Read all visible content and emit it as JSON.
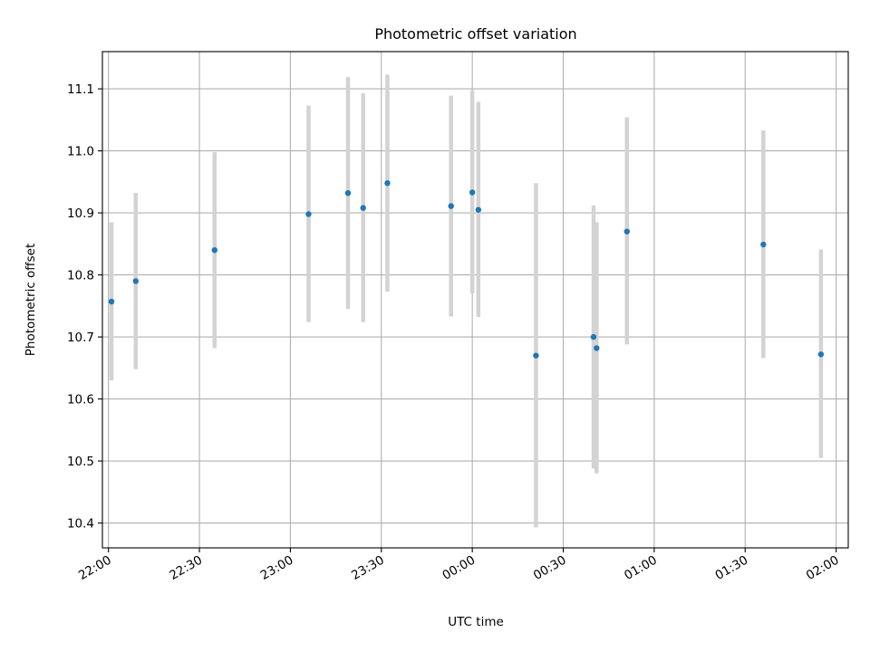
{
  "chart_data": {
    "type": "scatter",
    "title": "Photometric offset variation",
    "xlabel": "UTC time",
    "ylabel": "Photometric offset",
    "grid": true,
    "x_range": [
      "21:58",
      "02:04"
    ],
    "x_ticks": [
      "22:00",
      "22:30",
      "23:00",
      "23:30",
      "00:00",
      "00:30",
      "01:00",
      "01:30",
      "02:00"
    ],
    "ylim": [
      10.36,
      11.16
    ],
    "y_ticks": [
      "10.4",
      "10.5",
      "10.6",
      "10.7",
      "10.8",
      "10.9",
      "11.0",
      "11.1"
    ],
    "colors": {
      "point": "#1f77b4",
      "error_bar": "#d3d3d3",
      "grid": "#b0b0b0"
    },
    "points": [
      {
        "x": "22:01",
        "y": 10.757,
        "yerr_low": 10.63,
        "yerr_high": 10.885
      },
      {
        "x": "22:09",
        "y": 10.79,
        "yerr_low": 10.648,
        "yerr_high": 10.932
      },
      {
        "x": "22:35",
        "y": 10.84,
        "yerr_low": 10.682,
        "yerr_high": 10.998
      },
      {
        "x": "23:06",
        "y": 10.898,
        "yerr_low": 10.724,
        "yerr_high": 11.073
      },
      {
        "x": "23:19",
        "y": 10.932,
        "yerr_low": 10.745,
        "yerr_high": 11.119
      },
      {
        "x": "23:24",
        "y": 10.908,
        "yerr_low": 10.724,
        "yerr_high": 11.093
      },
      {
        "x": "23:32",
        "y": 10.948,
        "yerr_low": 10.773,
        "yerr_high": 11.123
      },
      {
        "x": "23:53",
        "y": 10.911,
        "yerr_low": 10.733,
        "yerr_high": 11.089
      },
      {
        "x": "00:00",
        "y": 10.933,
        "yerr_low": 10.77,
        "yerr_high": 11.097
      },
      {
        "x": "00:02",
        "y": 10.905,
        "yerr_low": 10.732,
        "yerr_high": 11.079
      },
      {
        "x": "00:21",
        "y": 10.67,
        "yerr_low": 10.393,
        "yerr_high": 10.948
      },
      {
        "x": "00:40",
        "y": 10.7,
        "yerr_low": 10.488,
        "yerr_high": 10.912
      },
      {
        "x": "00:41",
        "y": 10.682,
        "yerr_low": 10.48,
        "yerr_high": 10.885
      },
      {
        "x": "00:51",
        "y": 10.87,
        "yerr_low": 10.688,
        "yerr_high": 11.054
      },
      {
        "x": "01:36",
        "y": 10.849,
        "yerr_low": 10.666,
        "yerr_high": 11.033
      },
      {
        "x": "01:55",
        "y": 10.672,
        "yerr_low": 10.505,
        "yerr_high": 10.841
      }
    ]
  }
}
